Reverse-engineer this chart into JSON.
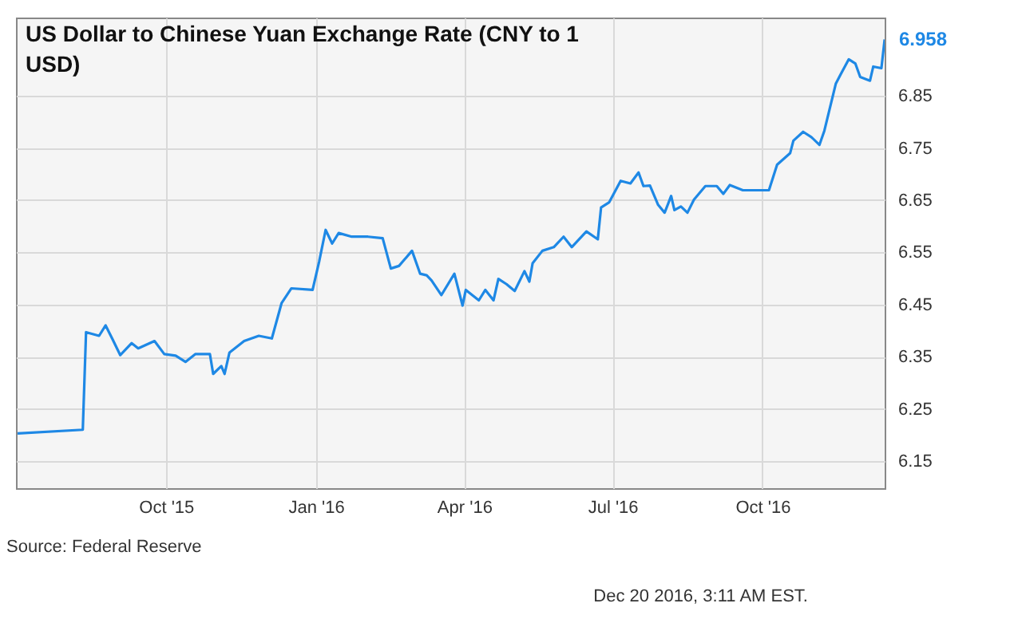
{
  "chart_data": {
    "type": "line",
    "title": "US Dollar to Chinese Yuan Exchange Rate (CNY to 1 USD)",
    "x": [
      "2015-07-02",
      "2015-08-11",
      "2015-08-13",
      "2015-08-21",
      "2015-08-25",
      "2015-08-29",
      "2015-09-03",
      "2015-09-10",
      "2015-09-14",
      "2015-09-24",
      "2015-09-30",
      "2015-10-07",
      "2015-10-13",
      "2015-10-19",
      "2015-10-28",
      "2015-10-30",
      "2015-11-04",
      "2015-11-06",
      "2015-11-09",
      "2015-11-18",
      "2015-11-27",
      "2015-12-05",
      "2015-12-11",
      "2015-12-17",
      "2015-12-30",
      "2016-01-03",
      "2016-01-07",
      "2016-01-11",
      "2016-01-15",
      "2016-01-23",
      "2016-02-02",
      "2016-02-11",
      "2016-02-16",
      "2016-02-21",
      "2016-02-29",
      "2016-03-05",
      "2016-03-09",
      "2016-03-12",
      "2016-03-18",
      "2016-03-26",
      "2016-03-31",
      "2016-04-02",
      "2016-04-10",
      "2016-04-14",
      "2016-04-19",
      "2016-04-22",
      "2016-04-27",
      "2016-05-02",
      "2016-05-08",
      "2016-05-11",
      "2016-05-13",
      "2016-05-19",
      "2016-05-26",
      "2016-06-01",
      "2016-06-06",
      "2016-06-15",
      "2016-06-22",
      "2016-06-24",
      "2016-06-29",
      "2016-07-06",
      "2016-07-12",
      "2016-07-17",
      "2016-07-20",
      "2016-07-24",
      "2016-07-29",
      "2016-08-02",
      "2016-08-06",
      "2016-08-08",
      "2016-08-12",
      "2016-08-16",
      "2016-08-20",
      "2016-08-27",
      "2016-09-03",
      "2016-09-07",
      "2016-09-11",
      "2016-09-19",
      "2016-10-05",
      "2016-10-10",
      "2016-10-18",
      "2016-10-20",
      "2016-10-26",
      "2016-10-31",
      "2016-11-05",
      "2016-11-08",
      "2016-11-15",
      "2016-11-18",
      "2016-11-23",
      "2016-11-27",
      "2016-11-30",
      "2016-12-06",
      "2016-12-08",
      "2016-12-13",
      "2016-12-15"
    ],
    "series": [
      {
        "color": "#1e88e5",
        "values": [
          6.203,
          6.21,
          6.397,
          6.39,
          6.41,
          6.385,
          6.353,
          6.376,
          6.366,
          6.38,
          6.355,
          6.352,
          6.34,
          6.355,
          6.355,
          6.317,
          6.332,
          6.317,
          6.358,
          6.38,
          6.39,
          6.385,
          6.453,
          6.481,
          6.478,
          6.532,
          6.593,
          6.567,
          6.587,
          6.58,
          6.58,
          6.577,
          6.519,
          6.524,
          6.553,
          6.509,
          6.506,
          6.496,
          6.468,
          6.509,
          6.448,
          6.478,
          6.458,
          6.478,
          6.458,
          6.499,
          6.489,
          6.476,
          6.514,
          6.494,
          6.529,
          6.553,
          6.56,
          6.58,
          6.56,
          6.59,
          6.575,
          6.636,
          6.646,
          6.687,
          6.682,
          6.703,
          6.677,
          6.678,
          6.641,
          6.626,
          6.658,
          6.631,
          6.638,
          6.626,
          6.651,
          6.677,
          6.677,
          6.662,
          6.679,
          6.669,
          6.669,
          6.718,
          6.74,
          6.764,
          6.781,
          6.771,
          6.756,
          6.783,
          6.873,
          6.891,
          6.92,
          6.912,
          6.886,
          6.879,
          6.906,
          6.903,
          6.958
        ]
      }
    ],
    "xlim": [
      "2015-07-01",
      "2016-12-15"
    ],
    "xticks": [
      {
        "value": "2015-10-01",
        "label": "Oct '15"
      },
      {
        "value": "2016-01-01",
        "label": "Jan '16"
      },
      {
        "value": "2016-04-01",
        "label": "Apr '16"
      },
      {
        "value": "2016-07-01",
        "label": "Jul '16"
      },
      {
        "value": "2016-10-01",
        "label": "Oct '16"
      }
    ],
    "ylim": [
      6.098,
      7.0
    ],
    "yticks": [
      6.15,
      6.25,
      6.35,
      6.45,
      6.55,
      6.65,
      6.75,
      6.85
    ],
    "grid": true,
    "line_style": "solid",
    "annotations": [
      {
        "text": "6.958",
        "x": "2016-12-15",
        "y": 6.958
      },
      "Source: Federal Reserve",
      "Dec 20 2016, 3:11 AM EST."
    ]
  }
}
